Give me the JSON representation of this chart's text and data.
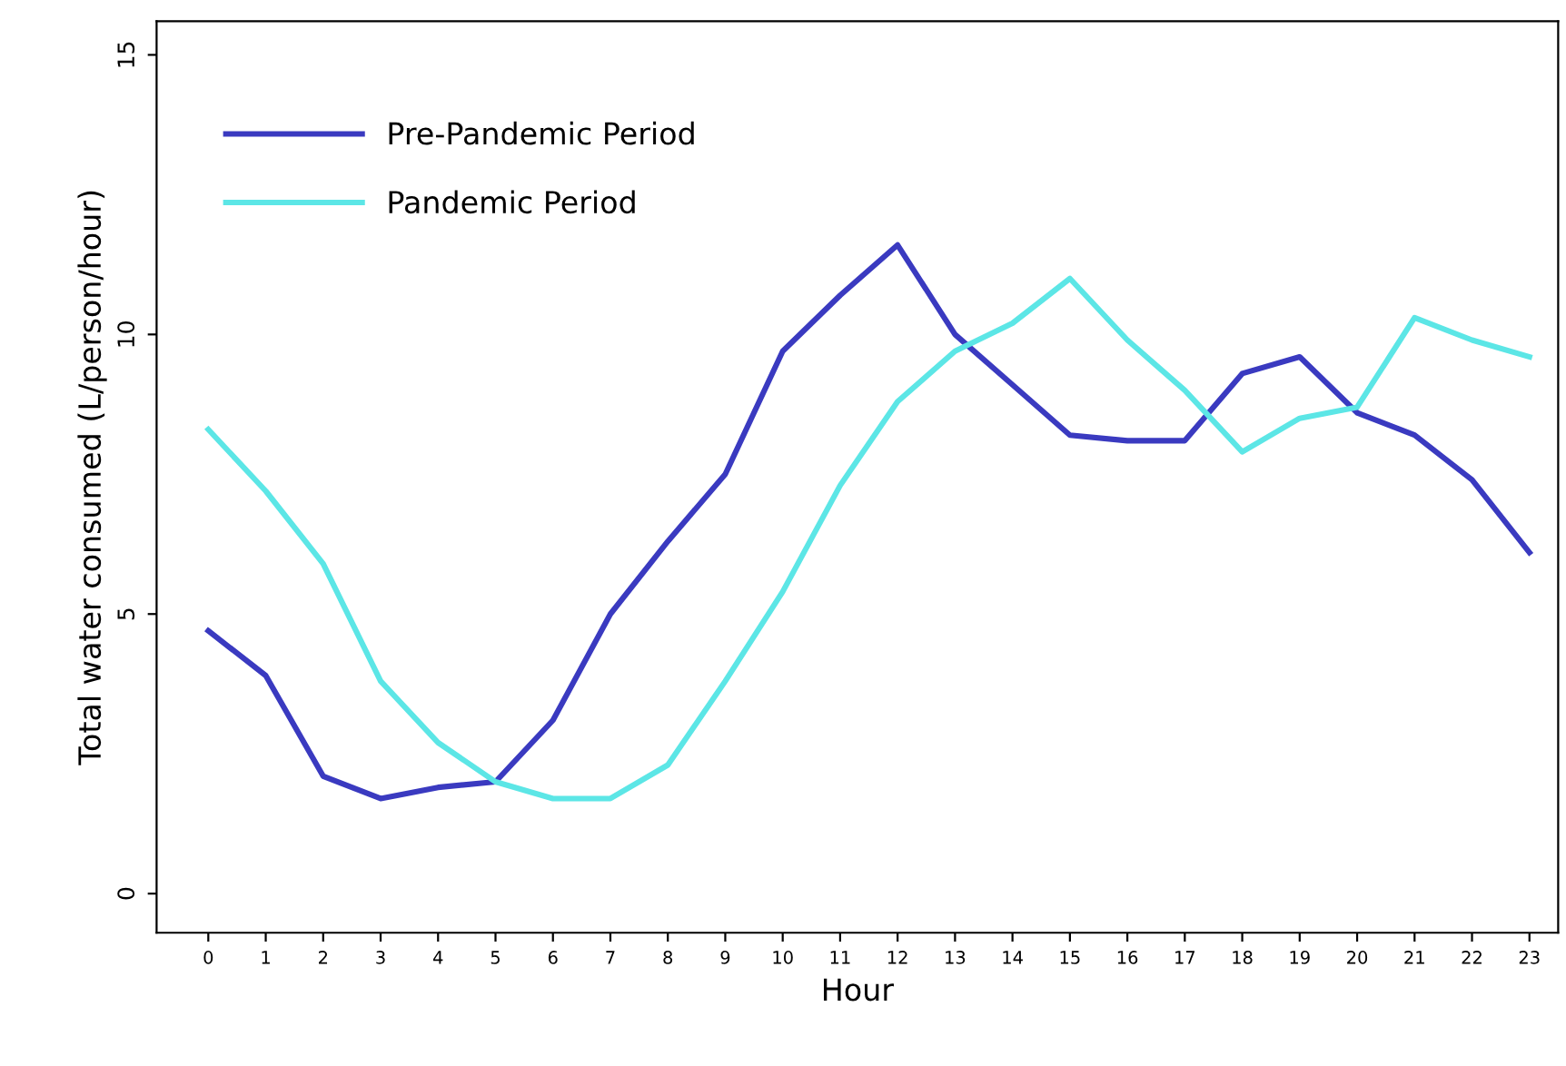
{
  "chart_data": {
    "type": "line",
    "xlabel": "Hour",
    "ylabel": "Total water consumed (L/person/hour)",
    "x": [
      0,
      1,
      2,
      3,
      4,
      5,
      6,
      7,
      8,
      9,
      10,
      11,
      12,
      13,
      14,
      15,
      16,
      17,
      18,
      19,
      20,
      21,
      22,
      23
    ],
    "xlim": [
      -0.9,
      23.5
    ],
    "xticks": [
      0,
      1,
      2,
      3,
      4,
      5,
      6,
      7,
      8,
      9,
      10,
      11,
      12,
      13,
      14,
      15,
      16,
      17,
      18,
      19,
      20,
      21,
      22,
      23
    ],
    "ylim": [
      -0.7,
      15.6
    ],
    "yticks": [
      0,
      5,
      10,
      15
    ],
    "grid": false,
    "legend": "top left",
    "marker": "none",
    "line_style": "solid",
    "series": [
      {
        "name": "Pre-Pandemic Period",
        "color": "#3a3ac0",
        "values": [
          4.7,
          3.9,
          2.1,
          1.7,
          1.9,
          2.0,
          3.1,
          5.0,
          6.3,
          7.5,
          9.7,
          10.7,
          11.6,
          10.0,
          9.1,
          8.2,
          8.1,
          8.1,
          9.3,
          9.6,
          8.6,
          8.2,
          7.4,
          6.1
        ]
      },
      {
        "name": "Pandemic Period",
        "color": "#5ce6e6",
        "values": [
          8.3,
          7.2,
          5.9,
          3.8,
          2.7,
          2.0,
          1.7,
          1.7,
          2.3,
          3.8,
          5.4,
          7.3,
          8.8,
          9.7,
          10.2,
          11.0,
          9.9,
          9.0,
          7.9,
          8.5,
          8.7,
          10.3,
          9.9,
          9.6
        ]
      }
    ]
  }
}
